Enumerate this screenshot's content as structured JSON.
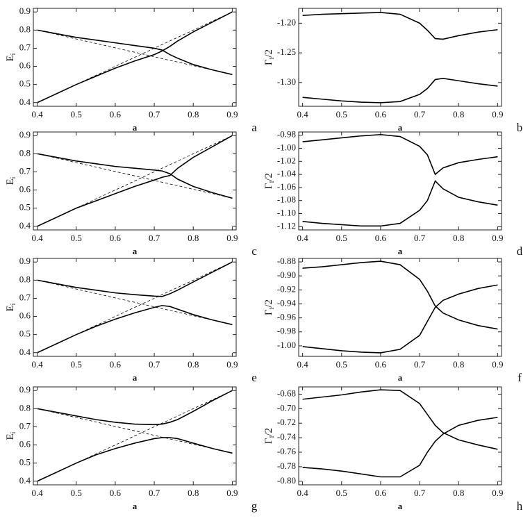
{
  "chart_data": [
    {
      "type": "line",
      "panel_label": "a",
      "xlabel": "a",
      "ylabel": "E",
      "ylabel_sub": "i",
      "x": [
        0.4,
        0.45,
        0.5,
        0.55,
        0.6,
        0.65,
        0.7,
        0.72,
        0.74,
        0.76,
        0.8,
        0.85,
        0.9
      ],
      "xlim": [
        0.39,
        0.91
      ],
      "xticks": [
        0.4,
        0.5,
        0.6,
        0.7,
        0.8,
        0.9
      ],
      "ylim": [
        0.38,
        0.92
      ],
      "yticks": [
        0.4,
        0.5,
        0.6,
        0.7,
        0.8,
        0.9
      ],
      "series": [
        {
          "color": "#000000",
          "style": "solid",
          "values": [
            0.8,
            0.78,
            0.76,
            0.745,
            0.73,
            0.715,
            0.7,
            0.69,
            0.665,
            0.645,
            0.61,
            0.58,
            0.555
          ]
        },
        {
          "color": "#000000",
          "style": "solid",
          "values": [
            0.4,
            0.45,
            0.5,
            0.545,
            0.59,
            0.63,
            0.665,
            0.685,
            0.71,
            0.74,
            0.79,
            0.845,
            0.9
          ]
        },
        {
          "color": "#000000",
          "style": "dashed",
          "values": [
            0.4,
            0.45,
            0.5,
            0.55,
            0.6,
            0.65,
            0.7,
            0.72,
            0.74,
            0.76,
            0.8,
            0.85,
            0.9
          ]
        },
        {
          "color": "#000000",
          "style": "dashed",
          "values": [
            0.8,
            0.776,
            0.751,
            0.727,
            0.702,
            0.678,
            0.653,
            0.643,
            0.633,
            0.624,
            0.604,
            0.58,
            0.555
          ]
        }
      ]
    },
    {
      "type": "line",
      "panel_label": "b",
      "xlabel": "a",
      "ylabel": "Γ",
      "ylabel_sub": "i",
      "ylabel_suffix": "/2",
      "x": [
        0.4,
        0.45,
        0.5,
        0.55,
        0.6,
        0.65,
        0.7,
        0.72,
        0.74,
        0.76,
        0.8,
        0.85,
        0.9
      ],
      "xlim": [
        0.39,
        0.91
      ],
      "xticks": [
        0.4,
        0.5,
        0.6,
        0.7,
        0.8,
        0.9
      ],
      "ylim": [
        -1.34,
        -1.175
      ],
      "yticks": [
        {
          "value": -1.3,
          "label": "-1.30"
        },
        -1.25,
        {
          "value": -1.2,
          "label": "-1.20"
        }
      ],
      "series": [
        {
          "color": "#000000",
          "style": "solid",
          "values": [
            -1.187,
            -1.185,
            -1.184,
            -1.183,
            -1.182,
            -1.185,
            -1.2,
            -1.212,
            -1.226,
            -1.227,
            -1.221,
            -1.215,
            -1.211
          ]
        },
        {
          "color": "#000000",
          "style": "solid",
          "values": [
            -1.325,
            -1.328,
            -1.331,
            -1.333,
            -1.334,
            -1.332,
            -1.32,
            -1.31,
            -1.295,
            -1.293,
            -1.297,
            -1.302,
            -1.306
          ]
        }
      ]
    },
    {
      "type": "line",
      "panel_label": "c",
      "xlabel": "a",
      "ylabel": "E",
      "ylabel_sub": "i",
      "x": [
        0.4,
        0.45,
        0.5,
        0.55,
        0.6,
        0.65,
        0.7,
        0.72,
        0.74,
        0.76,
        0.8,
        0.85,
        0.9
      ],
      "xlim": [
        0.39,
        0.91
      ],
      "xticks": [
        0.4,
        0.5,
        0.6,
        0.7,
        0.8,
        0.9
      ],
      "ylim": [
        0.38,
        0.92
      ],
      "yticks": [
        0.4,
        0.5,
        0.6,
        0.7,
        0.8,
        0.9
      ],
      "series": [
        {
          "color": "#000000",
          "style": "solid",
          "values": [
            0.8,
            0.78,
            0.76,
            0.745,
            0.73,
            0.72,
            0.71,
            0.705,
            0.69,
            0.66,
            0.62,
            0.585,
            0.555
          ]
        },
        {
          "color": "#000000",
          "style": "solid",
          "values": [
            0.4,
            0.45,
            0.5,
            0.54,
            0.58,
            0.62,
            0.655,
            0.67,
            0.68,
            0.72,
            0.78,
            0.84,
            0.9
          ]
        },
        {
          "color": "#000000",
          "style": "dashed",
          "values": [
            0.4,
            0.45,
            0.5,
            0.55,
            0.6,
            0.65,
            0.7,
            0.72,
            0.74,
            0.76,
            0.8,
            0.85,
            0.9
          ]
        },
        {
          "color": "#000000",
          "style": "dashed",
          "values": [
            0.8,
            0.776,
            0.751,
            0.727,
            0.702,
            0.678,
            0.653,
            0.643,
            0.633,
            0.624,
            0.604,
            0.58,
            0.555
          ]
        }
      ]
    },
    {
      "type": "line",
      "panel_label": "d",
      "xlabel": "a",
      "ylabel": "Γ",
      "ylabel_sub": "i",
      "ylabel_suffix": "/2",
      "x": [
        0.4,
        0.45,
        0.5,
        0.55,
        0.6,
        0.65,
        0.7,
        0.72,
        0.74,
        0.76,
        0.8,
        0.85,
        0.9
      ],
      "xlim": [
        0.39,
        0.91
      ],
      "xticks": [
        0.4,
        0.5,
        0.6,
        0.7,
        0.8,
        0.9
      ],
      "ylim": [
        -1.125,
        -0.975
      ],
      "yticks": [
        -1.12,
        {
          "value": -1.1,
          "label": "-1.10"
        },
        -1.08,
        -1.06,
        -1.04,
        -1.02,
        {
          "value": -1.0,
          "label": "-1.00"
        },
        -0.98
      ],
      "series": [
        {
          "color": "#000000",
          "style": "solid",
          "values": [
            -0.99,
            -0.987,
            -0.984,
            -0.981,
            -0.979,
            -0.982,
            -0.997,
            -1.01,
            -1.04,
            -1.03,
            -1.022,
            -1.017,
            -1.013
          ]
        },
        {
          "color": "#000000",
          "style": "solid",
          "values": [
            -1.112,
            -1.115,
            -1.117,
            -1.119,
            -1.119,
            -1.115,
            -1.095,
            -1.08,
            -1.05,
            -1.062,
            -1.075,
            -1.082,
            -1.087
          ]
        }
      ]
    },
    {
      "type": "line",
      "panel_label": "e",
      "xlabel": "a",
      "ylabel": "E",
      "ylabel_sub": "i",
      "x": [
        0.4,
        0.45,
        0.5,
        0.55,
        0.6,
        0.65,
        0.7,
        0.72,
        0.74,
        0.76,
        0.8,
        0.85,
        0.9
      ],
      "xlim": [
        0.39,
        0.91
      ],
      "xticks": [
        0.4,
        0.5,
        0.6,
        0.7,
        0.8,
        0.9
      ],
      "ylim": [
        0.38,
        0.92
      ],
      "yticks": [
        0.4,
        0.5,
        0.6,
        0.7,
        0.8,
        0.9
      ],
      "series": [
        {
          "color": "#000000",
          "style": "solid",
          "values": [
            0.8,
            0.78,
            0.76,
            0.745,
            0.73,
            0.72,
            0.712,
            0.71,
            0.725,
            0.745,
            0.79,
            0.845,
            0.9
          ]
        },
        {
          "color": "#000000",
          "style": "solid",
          "values": [
            0.4,
            0.45,
            0.5,
            0.545,
            0.585,
            0.62,
            0.65,
            0.66,
            0.655,
            0.64,
            0.61,
            0.58,
            0.555
          ]
        },
        {
          "color": "#000000",
          "style": "dashed",
          "values": [
            0.4,
            0.45,
            0.5,
            0.55,
            0.6,
            0.65,
            0.7,
            0.72,
            0.74,
            0.76,
            0.8,
            0.85,
            0.9
          ]
        },
        {
          "color": "#000000",
          "style": "dashed",
          "values": [
            0.8,
            0.776,
            0.751,
            0.727,
            0.702,
            0.678,
            0.653,
            0.643,
            0.633,
            0.624,
            0.604,
            0.58,
            0.555
          ]
        }
      ]
    },
    {
      "type": "line",
      "panel_label": "f",
      "xlabel": "a",
      "ylabel": "Γ",
      "ylabel_sub": "i",
      "ylabel_suffix": "/2",
      "x": [
        0.4,
        0.45,
        0.5,
        0.55,
        0.6,
        0.65,
        0.7,
        0.72,
        0.74,
        0.76,
        0.8,
        0.85,
        0.9
      ],
      "xlim": [
        0.39,
        0.91
      ],
      "xticks": [
        0.4,
        0.5,
        0.6,
        0.7,
        0.8,
        0.9
      ],
      "ylim": [
        -1.015,
        -0.875
      ],
      "yticks": [
        {
          "value": -1.0,
          "label": "-1.00"
        },
        -0.98,
        -0.96,
        -0.94,
        -0.92,
        {
          "value": -0.9,
          "label": "-0.90"
        },
        -0.88
      ],
      "series": [
        {
          "color": "#000000",
          "style": "solid",
          "values": [
            -0.889,
            -0.887,
            -0.884,
            -0.881,
            -0.879,
            -0.884,
            -0.905,
            -0.922,
            -0.943,
            -0.953,
            -0.963,
            -0.971,
            -0.976
          ]
        },
        {
          "color": "#000000",
          "style": "solid",
          "values": [
            -1.001,
            -1.004,
            -1.007,
            -1.009,
            -1.01,
            -1.005,
            -0.985,
            -0.965,
            -0.945,
            -0.935,
            -0.926,
            -0.918,
            -0.913
          ]
        }
      ]
    },
    {
      "type": "line",
      "panel_label": "g",
      "xlabel": "a",
      "ylabel": "E",
      "ylabel_sub": "i",
      "x": [
        0.4,
        0.45,
        0.5,
        0.55,
        0.6,
        0.65,
        0.7,
        0.72,
        0.74,
        0.76,
        0.8,
        0.85,
        0.9
      ],
      "xlim": [
        0.39,
        0.91
      ],
      "xticks": [
        0.4,
        0.5,
        0.6,
        0.7,
        0.8,
        0.9
      ],
      "ylim": [
        0.38,
        0.92
      ],
      "yticks": [
        0.4,
        0.5,
        0.6,
        0.7,
        0.8,
        0.9
      ],
      "series": [
        {
          "color": "#000000",
          "style": "solid",
          "values": [
            0.8,
            0.78,
            0.76,
            0.74,
            0.725,
            0.715,
            0.712,
            0.715,
            0.725,
            0.74,
            0.785,
            0.845,
            0.9
          ]
        },
        {
          "color": "#000000",
          "style": "solid",
          "values": [
            0.4,
            0.45,
            0.5,
            0.545,
            0.58,
            0.61,
            0.635,
            0.64,
            0.64,
            0.635,
            0.61,
            0.58,
            0.555
          ]
        },
        {
          "color": "#000000",
          "style": "dashed",
          "values": [
            0.4,
            0.45,
            0.5,
            0.55,
            0.6,
            0.65,
            0.7,
            0.72,
            0.74,
            0.76,
            0.8,
            0.85,
            0.9
          ]
        },
        {
          "color": "#000000",
          "style": "dashed",
          "values": [
            0.8,
            0.776,
            0.751,
            0.727,
            0.702,
            0.678,
            0.653,
            0.643,
            0.633,
            0.624,
            0.604,
            0.58,
            0.555
          ]
        }
      ]
    },
    {
      "type": "line",
      "panel_label": "h",
      "xlabel": "a",
      "ylabel": "Γ",
      "ylabel_sub": "i",
      "ylabel_suffix": "/2",
      "x": [
        0.4,
        0.45,
        0.5,
        0.55,
        0.6,
        0.65,
        0.7,
        0.72,
        0.74,
        0.76,
        0.8,
        0.85,
        0.9
      ],
      "xlim": [
        0.39,
        0.91
      ],
      "xticks": [
        0.4,
        0.5,
        0.6,
        0.7,
        0.8,
        0.9
      ],
      "ylim": [
        -0.805,
        -0.67
      ],
      "yticks": [
        {
          "value": -0.8,
          "label": "-0.80"
        },
        -0.78,
        -0.76,
        -0.74,
        -0.72,
        {
          "value": -0.7,
          "label": "-0.70"
        },
        -0.68
      ],
      "series": [
        {
          "color": "#000000",
          "style": "solid",
          "values": [
            -0.687,
            -0.684,
            -0.681,
            -0.677,
            -0.674,
            -0.675,
            -0.693,
            -0.708,
            -0.723,
            -0.733,
            -0.743,
            -0.75,
            -0.756
          ]
        },
        {
          "color": "#000000",
          "style": "solid",
          "values": [
            -0.781,
            -0.783,
            -0.786,
            -0.79,
            -0.794,
            -0.794,
            -0.778,
            -0.76,
            -0.745,
            -0.735,
            -0.723,
            -0.716,
            -0.712
          ]
        }
      ]
    }
  ]
}
